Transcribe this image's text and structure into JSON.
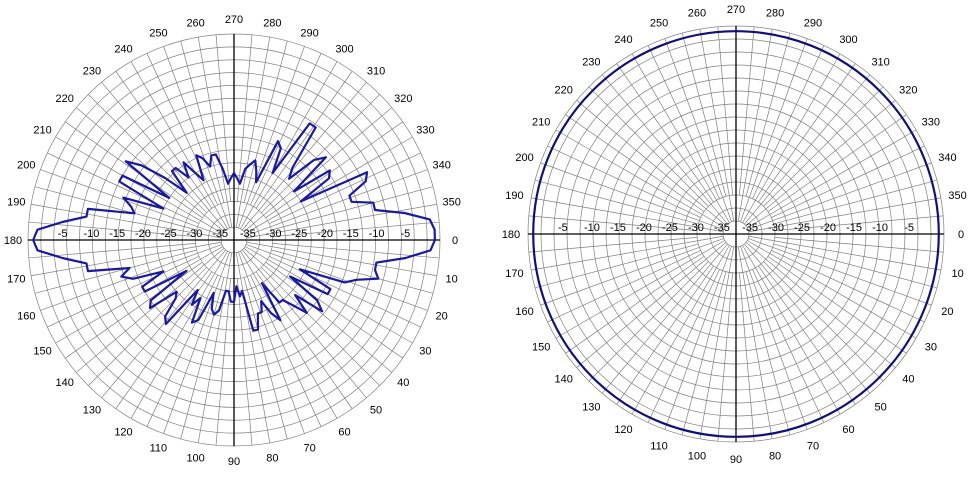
{
  "chart_data": [
    {
      "type": "polar",
      "title": "",
      "angle_unit": "deg",
      "angle_direction": "clockwise",
      "angle_zero": "right",
      "angle_ticks": [
        0,
        10,
        20,
        30,
        40,
        50,
        60,
        70,
        80,
        90,
        100,
        110,
        120,
        130,
        140,
        150,
        160,
        170,
        180,
        190,
        200,
        210,
        220,
        230,
        240,
        250,
        260,
        270,
        280,
        290,
        300,
        310,
        320,
        330,
        340,
        350
      ],
      "radial_unit": "dB",
      "rlim": [
        -40,
        0
      ],
      "radial_ticks": [
        -5,
        -10,
        -15,
        -20,
        -25,
        -30,
        -35
      ],
      "radial_tick_labels": [
        "-5",
        "-10",
        "-15",
        "-20",
        "-25",
        "-30",
        "-35"
      ],
      "grid": true,
      "trace_color": "#1a1aa0",
      "series": [
        {
          "angle_deg": [
            0,
            3,
            6,
            9,
            12,
            15,
            18,
            21,
            24,
            27,
            30,
            33,
            36,
            39,
            42,
            45,
            48,
            51,
            54,
            57,
            60,
            63,
            66,
            69,
            72,
            75,
            78,
            81,
            84,
            87,
            90,
            93,
            96,
            99,
            102,
            105,
            108,
            111,
            114,
            117,
            120,
            123,
            126,
            129,
            132,
            135,
            138,
            141,
            144,
            147,
            150,
            153,
            156,
            159,
            162,
            165,
            168,
            171,
            174,
            177,
            180,
            183,
            186,
            189,
            192,
            195,
            198,
            201,
            204,
            207,
            210,
            213,
            216,
            219,
            222,
            225,
            228,
            231,
            234,
            237,
            240,
            243,
            246,
            249,
            252,
            255,
            258,
            261,
            264,
            267,
            270,
            273,
            276,
            279,
            282,
            285,
            288,
            291,
            294,
            297,
            300,
            303,
            306,
            309,
            312,
            315,
            318,
            321,
            324,
            327,
            330,
            333,
            336,
            339,
            342,
            345,
            348,
            351,
            354,
            357
          ],
          "values_db": [
            -1,
            -1.8,
            -6.5,
            -12,
            -12,
            -11,
            -15,
            -17,
            -26,
            -19,
            -19,
            -27,
            -20,
            -18,
            -24,
            -20,
            -23,
            -25,
            -25,
            -30,
            -22,
            -24,
            -27,
            -25,
            -25,
            -22,
            -22,
            -30,
            -29,
            -31,
            -28,
            -28,
            -30,
            -30,
            -26,
            -25,
            -26,
            -29,
            -23,
            -22,
            -27,
            -25,
            -28,
            -19,
            -20,
            -24,
            -25,
            -19,
            -20,
            -29,
            -20,
            -20,
            -25,
            -19,
            -17,
            -19,
            -11,
            -11,
            -6.5,
            -1.8,
            -1,
            -1.8,
            -6.5,
            -11,
            -11,
            -20,
            -19,
            -17,
            -25,
            -15,
            -15,
            -25,
            -14,
            -17,
            -22,
            -27,
            -22,
            -22,
            -25,
            -22,
            -25,
            -27,
            -22,
            -23,
            -25,
            -23,
            -23,
            -26,
            -29,
            -28,
            -27,
            -28,
            -29,
            -26,
            -25,
            -24,
            -26,
            -28,
            -19,
            -20,
            -25,
            -13,
            -13,
            -22,
            -24,
            -18,
            -16,
            -25,
            -17,
            -18,
            -25,
            -11,
            -12,
            -16,
            -16,
            -12,
            -12,
            -6.5,
            -1.8,
            -1
          ]
        }
      ]
    },
    {
      "type": "polar",
      "title": "",
      "angle_unit": "deg",
      "angle_direction": "clockwise",
      "angle_zero": "right",
      "angle_ticks": [
        0,
        10,
        20,
        30,
        40,
        50,
        60,
        70,
        80,
        90,
        100,
        110,
        120,
        130,
        140,
        150,
        160,
        170,
        180,
        190,
        200,
        210,
        220,
        230,
        240,
        250,
        260,
        270,
        280,
        290,
        300,
        310,
        320,
        330,
        340,
        350
      ],
      "radial_unit": "dB",
      "rlim": [
        -40,
        0
      ],
      "radial_ticks": [
        -5,
        -10,
        -15,
        -20,
        -25,
        -30,
        -35
      ],
      "radial_tick_labels": [
        "-5",
        "-10",
        "-15",
        "-20",
        "-25",
        "-30",
        "-35"
      ],
      "grid": true,
      "trace_color": "#10107a",
      "series": [
        {
          "angle_deg": [
            0,
            30,
            60,
            90,
            120,
            150,
            180,
            210,
            240,
            270,
            300,
            330
          ],
          "values_db": [
            -1,
            -1,
            -1,
            -1,
            -1,
            -1,
            -1,
            -1,
            -1,
            -1,
            -1,
            -1
          ]
        }
      ]
    }
  ]
}
